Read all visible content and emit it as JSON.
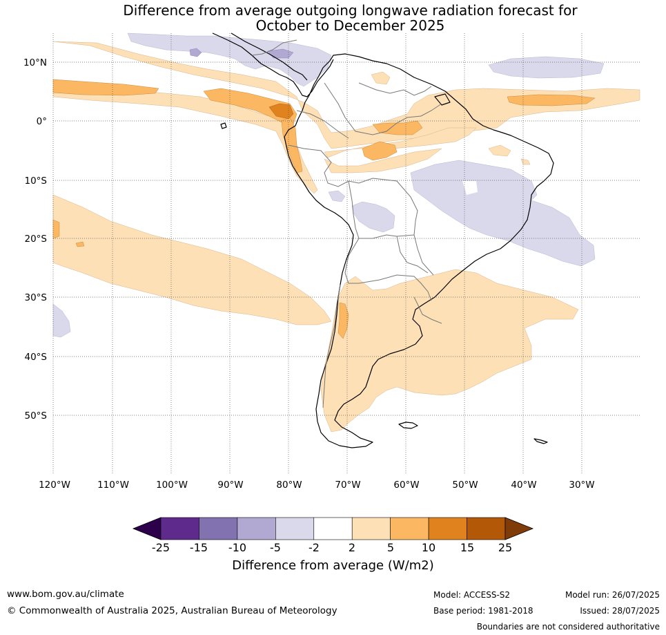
{
  "title_line1": "Difference from average outgoing longwave radiation forecast for",
  "title_line2": "October to December 2025",
  "lat_labels": [
    "10°N",
    "0°",
    "10°S",
    "20°S",
    "30°S",
    "40°S",
    "50°S"
  ],
  "lon_labels": [
    "120°W",
    "110°W",
    "100°W",
    "90°W",
    "80°W",
    "70°W",
    "60°W",
    "50°W",
    "40°W",
    "30°W"
  ],
  "colorbar": {
    "tick_labels": [
      "-25",
      "-15",
      "-10",
      "-5",
      "-2",
      "2",
      "5",
      "10",
      "15",
      "25"
    ],
    "title": "Difference from average (W/m2)",
    "colors": [
      "#2d004b",
      "#5e2a8c",
      "#8273b0",
      "#b1a9d2",
      "#d9d9eb",
      "#ffffff",
      "#fee0b6",
      "#fbb762",
      "#e0821d",
      "#b35806",
      "#7f3b08"
    ]
  },
  "footer": {
    "website": "www.bom.gov.au/climate",
    "copyright": "© Commonwealth of Australia 2025, Australian Bureau of Meteorology",
    "model": "Model: ACCESS-S2",
    "base_period": "Base period: 1981-2018",
    "model_run": "Model run: 26/07/2025",
    "issued": "Issued: 28/07/2025",
    "disclaimer": "Boundaries are not considered authoritative"
  }
}
